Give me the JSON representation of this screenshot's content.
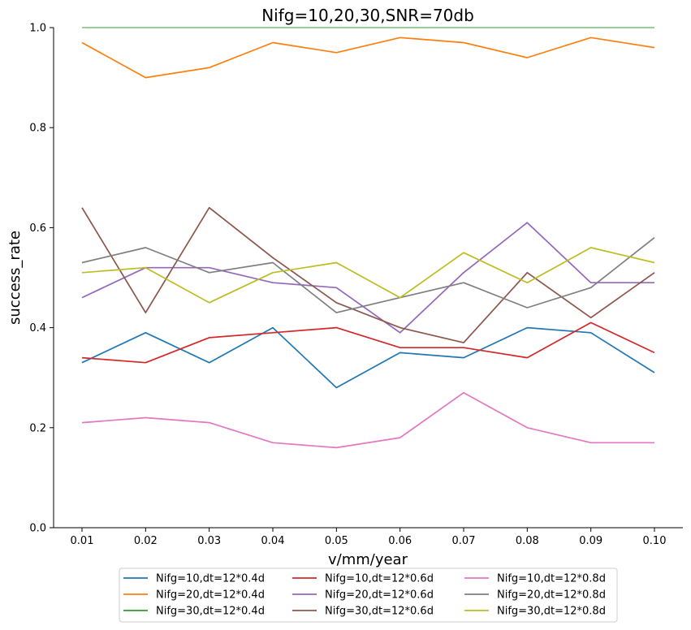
{
  "chart_data": {
    "type": "line",
    "title": "Nifg=10,20,30,SNR=70db",
    "xlabel": "v/mm/year",
    "ylabel": "success_rate",
    "xlim": [
      0.01,
      0.1
    ],
    "ylim": [
      0.0,
      1.0
    ],
    "x": [
      "0.01",
      "0.02",
      "0.03",
      "0.04",
      "0.05",
      "0.06",
      "0.07",
      "0.08",
      "0.09",
      "0.10"
    ],
    "yticks": [
      "0.0",
      "0.2",
      "0.4",
      "0.6",
      "0.8",
      "1.0"
    ],
    "grid": false,
    "legend_position": "below-center",
    "legend_columns": 3,
    "series": [
      {
        "name": "Nifg=10,dt=12*0.4d",
        "color": "#1f77b4",
        "values": [
          0.33,
          0.39,
          0.33,
          0.4,
          0.28,
          0.35,
          0.34,
          0.4,
          0.39,
          0.31
        ]
      },
      {
        "name": "Nifg=20,dt=12*0.4d",
        "color": "#ff7f0e",
        "values": [
          0.97,
          0.9,
          0.92,
          0.97,
          0.95,
          0.98,
          0.97,
          0.94,
          0.98,
          0.96
        ]
      },
      {
        "name": "Nifg=30,dt=12*0.4d",
        "color": "#2ca02c",
        "values": [
          1.0,
          1.0,
          1.0,
          1.0,
          1.0,
          1.0,
          1.0,
          1.0,
          1.0,
          1.0
        ]
      },
      {
        "name": "Nifg=10,dt=12*0.6d",
        "color": "#d62728",
        "values": [
          0.34,
          0.33,
          0.38,
          0.39,
          0.4,
          0.36,
          0.36,
          0.34,
          0.41,
          0.35
        ]
      },
      {
        "name": "Nifg=20,dt=12*0.6d",
        "color": "#9467bd",
        "values": [
          0.46,
          0.52,
          0.52,
          0.49,
          0.48,
          0.39,
          0.51,
          0.61,
          0.49,
          0.49
        ]
      },
      {
        "name": "Nifg=30,dt=12*0.6d",
        "color": "#8c564b",
        "values": [
          0.64,
          0.43,
          0.64,
          0.54,
          0.45,
          0.4,
          0.37,
          0.51,
          0.42,
          0.51
        ]
      },
      {
        "name": "Nifg=10,dt=12*0.8d",
        "color": "#e377c2",
        "values": [
          0.21,
          0.22,
          0.21,
          0.17,
          0.16,
          0.18,
          0.27,
          0.2,
          0.17,
          0.17
        ]
      },
      {
        "name": "Nifg=20,dt=12*0.8d",
        "color": "#7f7f7f",
        "values": [
          0.53,
          0.56,
          0.51,
          0.53,
          0.43,
          0.46,
          0.49,
          0.44,
          0.48,
          0.58
        ]
      },
      {
        "name": "Nifg=30,dt=12*0.8d",
        "color": "#bcbd22",
        "values": [
          0.51,
          0.52,
          0.45,
          0.51,
          0.53,
          0.46,
          0.55,
          0.49,
          0.56,
          0.53
        ]
      }
    ]
  }
}
